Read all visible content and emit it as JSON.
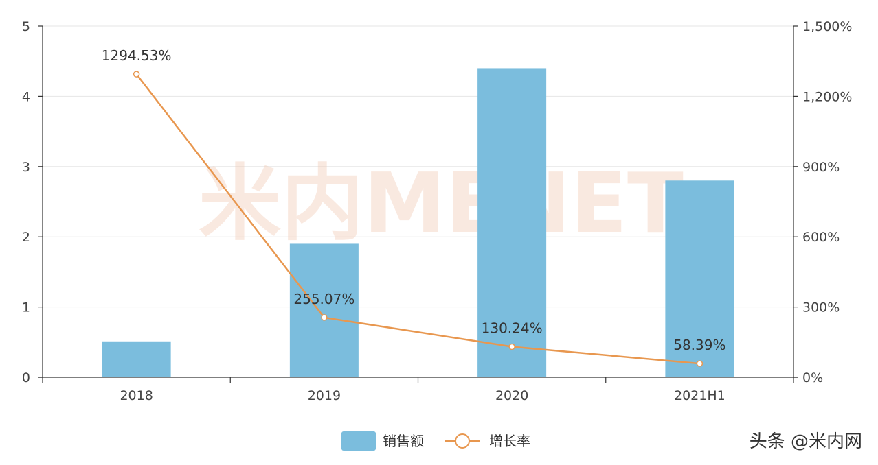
{
  "chart_data": {
    "type": "bar",
    "categories": [
      "2018",
      "2019",
      "2020",
      "2021H1"
    ],
    "series": [
      {
        "name": "销售额",
        "type": "bar",
        "axis": "left",
        "values": [
          0.51,
          1.9,
          4.4,
          2.8
        ],
        "color": "#7bbddd"
      },
      {
        "name": "增长率",
        "type": "line",
        "axis": "right",
        "values": [
          1294.53,
          255.07,
          130.24,
          58.39
        ],
        "labels": [
          "1294.53%",
          "255.07%",
          "130.24%",
          "58.39%"
        ],
        "color": "#e8974f"
      }
    ],
    "y_left": {
      "ylim": [
        0,
        5
      ],
      "ticks": [
        0,
        1,
        2,
        3,
        4,
        5
      ],
      "tick_labels": [
        "0",
        "1",
        "2",
        "3",
        "4",
        "5"
      ]
    },
    "y_right": {
      "ylim": [
        0,
        1500
      ],
      "ticks": [
        0,
        300,
        600,
        900,
        1200,
        1500
      ],
      "tick_labels": [
        "0%",
        "300%",
        "600%",
        "900%",
        "1,200%",
        "1,500%"
      ]
    },
    "grid": true,
    "legend": "bottom-center"
  },
  "watermark": {
    "text": "米内MENET"
  },
  "signature": {
    "text": "头条 @米内网"
  }
}
